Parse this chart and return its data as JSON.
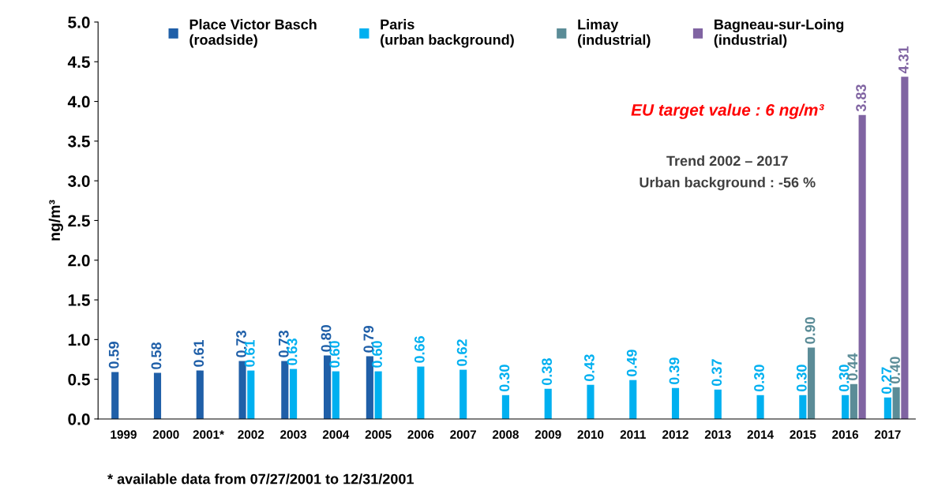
{
  "chart_data": {
    "type": "bar",
    "ylabel": "ng/m³",
    "categories": [
      "1999",
      "2000",
      "2001*",
      "2002",
      "2003",
      "2004",
      "2005",
      "2006",
      "2007",
      "2008",
      "2009",
      "2010",
      "2011",
      "2012",
      "2013",
      "2014",
      "2015",
      "2016",
      "2017"
    ],
    "series": [
      {
        "name": "Place Victor Basch\n(roadside)",
        "color": "#1f5fa8",
        "values": [
          0.59,
          0.58,
          0.61,
          0.73,
          0.73,
          0.8,
          0.79,
          null,
          null,
          null,
          null,
          null,
          null,
          null,
          null,
          null,
          null,
          null,
          null
        ],
        "value_labels": [
          "0.59",
          "0.58",
          "0.61",
          "0.73",
          "0.73",
          "0.80",
          "0.79",
          null,
          null,
          null,
          null,
          null,
          null,
          null,
          null,
          null,
          null,
          null,
          null
        ]
      },
      {
        "name": "Paris\n(urban background)",
        "color": "#00b0f0",
        "values": [
          null,
          null,
          null,
          0.61,
          0.63,
          0.6,
          0.6,
          0.66,
          0.62,
          0.3,
          0.38,
          0.43,
          0.49,
          0.39,
          0.37,
          0.3,
          0.3,
          0.3,
          0.27
        ],
        "value_labels": [
          null,
          null,
          null,
          "0.61",
          "0.63",
          "0.60",
          "0.60",
          "0.66",
          "0.62",
          "0.30",
          "0.38",
          "0.43",
          "0.49",
          "0.39",
          "0.37",
          "0.30",
          "0.30",
          "0.30",
          "0.27"
        ]
      },
      {
        "name": "Limay\n(industrial)",
        "color": "#5b8c97",
        "values": [
          null,
          null,
          null,
          null,
          null,
          null,
          null,
          null,
          null,
          null,
          null,
          null,
          null,
          null,
          null,
          null,
          0.9,
          0.44,
          0.4
        ],
        "value_labels": [
          null,
          null,
          null,
          null,
          null,
          null,
          null,
          null,
          null,
          null,
          null,
          null,
          null,
          null,
          null,
          null,
          "0.90",
          "0.44",
          "0.40"
        ]
      },
      {
        "name": "Bagneau-sur-Loing\n(industrial)",
        "color": "#8064a2",
        "values": [
          null,
          null,
          null,
          null,
          null,
          null,
          null,
          null,
          null,
          null,
          null,
          null,
          null,
          null,
          null,
          null,
          null,
          3.83,
          4.31
        ],
        "value_labels": [
          null,
          null,
          null,
          null,
          null,
          null,
          null,
          null,
          null,
          null,
          null,
          null,
          null,
          null,
          null,
          null,
          null,
          "3.83",
          "4.31"
        ]
      }
    ],
    "ylim": [
      0,
      5.0
    ],
    "yticks": [
      {
        "value": 0,
        "label": "0.0"
      },
      0.5,
      {
        "value": 1,
        "label": "1.0"
      },
      1.5,
      {
        "value": 2,
        "label": "2.0"
      },
      2.5,
      {
        "value": 3,
        "label": "3.0"
      },
      3.5,
      {
        "value": 4,
        "label": "4.0"
      },
      4.5,
      {
        "value": 5,
        "label": "5.0"
      }
    ],
    "grid": false,
    "legend": "top",
    "annotations": [
      "EU target value : 6 ng/m³",
      "Trend 2002 – 2017\nUrban background : -56 %",
      "* available data from 07/27/2001 to 12/31/2001"
    ]
  }
}
